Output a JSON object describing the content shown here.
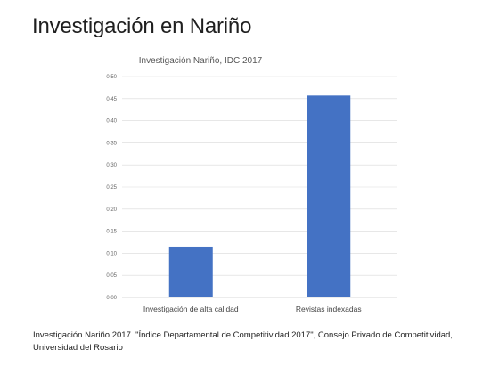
{
  "slide": {
    "title": "Investigación en Nariño",
    "caption": "Investigación Nariño 2017. \"Índice Departamental de Competitividad 2017\", Consejo Privado de Competitividad, Universidad del Rosario"
  },
  "chart_data": {
    "type": "bar",
    "title": "Investigación Nariño, IDC  2017",
    "categories": [
      "Investigación de alta calidad",
      "Revistas indexadas"
    ],
    "values": [
      0.115,
      0.457
    ],
    "xlabel": "",
    "ylabel": "",
    "ylim": [
      0,
      0.5
    ],
    "y_ticks": [
      "0,00",
      "0,05",
      "0,10",
      "0,15",
      "0,20",
      "0,25",
      "0,30",
      "0,35",
      "0,40",
      "0,45",
      "0,50"
    ],
    "grid": true,
    "legend": "none",
    "bar_color": "#4472c4",
    "grid_color": "#d9d9d9"
  }
}
